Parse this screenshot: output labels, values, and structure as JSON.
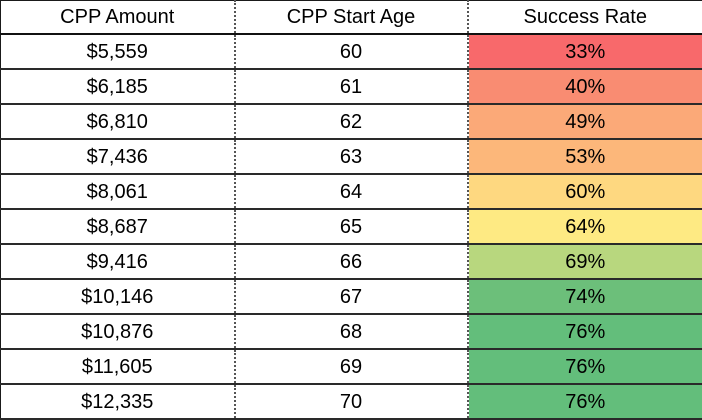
{
  "table": {
    "headers": [
      "CPP Amount",
      "CPP Start Age",
      "Success Rate"
    ],
    "rows": [
      {
        "amount": "$5,559",
        "age": "60",
        "rate": "33%",
        "color": "#F8696B"
      },
      {
        "amount": "$6,185",
        "age": "61",
        "rate": "40%",
        "color": "#F98C72"
      },
      {
        "amount": "$6,810",
        "age": "62",
        "rate": "49%",
        "color": "#FBA978"
      },
      {
        "amount": "$7,436",
        "age": "63",
        "rate": "53%",
        "color": "#FCB77A"
      },
      {
        "amount": "$8,061",
        "age": "64",
        "rate": "60%",
        "color": "#FED880"
      },
      {
        "amount": "$8,687",
        "age": "65",
        "rate": "64%",
        "color": "#FEEA83"
      },
      {
        "amount": "$9,416",
        "age": "66",
        "rate": "69%",
        "color": "#B8D77E"
      },
      {
        "amount": "$10,146",
        "age": "67",
        "rate": "74%",
        "color": "#6CBF7A"
      },
      {
        "amount": "$10,876",
        "age": "68",
        "rate": "76%",
        "color": "#63BE7B"
      },
      {
        "amount": "$11,605",
        "age": "69",
        "rate": "76%",
        "color": "#63BE7B"
      },
      {
        "amount": "$12,335",
        "age": "70",
        "rate": "76%",
        "color": "#63BE7B"
      }
    ]
  }
}
